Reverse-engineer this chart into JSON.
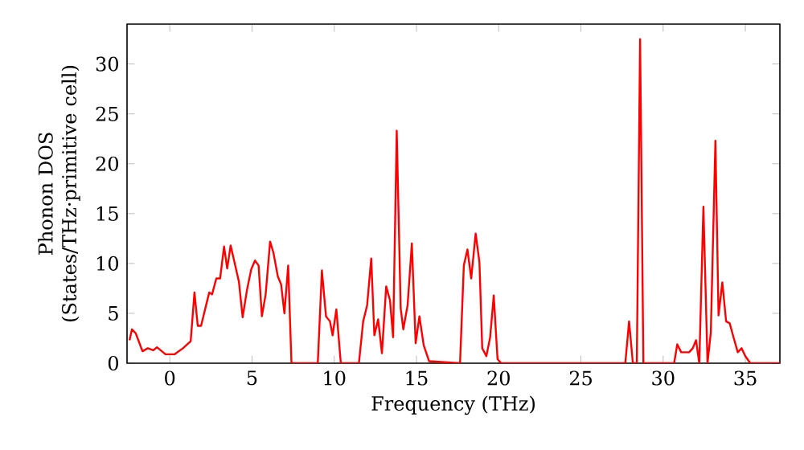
{
  "chart_data": {
    "type": "line",
    "xlabel": "Frequency (THz)",
    "ylabel": "Phonon DOS (States/THz·primitive cell)",
    "series": [
      {
        "color": "#ff0000",
        "x": [
          -2.45,
          -2.3,
          -2.07,
          -1.66,
          -1.34,
          -1.0,
          -0.78,
          -0.26,
          0.3,
          0.8,
          1.27,
          1.5,
          1.7,
          1.9,
          2.4,
          2.57,
          2.83,
          3.06,
          3.3,
          3.49,
          3.7,
          4.2,
          4.43,
          4.7,
          4.95,
          5.18,
          5.4,
          5.6,
          5.83,
          6.1,
          6.3,
          6.57,
          6.77,
          6.97,
          7.2,
          7.4,
          9.0,
          9.25,
          9.5,
          9.74,
          9.9,
          10.13,
          10.4,
          11.5,
          11.76,
          12.0,
          12.25,
          12.44,
          12.67,
          12.9,
          13.16,
          13.39,
          13.58,
          13.8,
          14.04,
          14.2,
          14.46,
          14.72,
          14.95,
          15.18,
          15.44,
          15.77,
          17.65,
          17.88,
          18.1,
          18.33,
          18.6,
          18.83,
          19.0,
          19.25,
          19.48,
          19.7,
          19.93,
          20.16,
          27.7,
          27.93,
          28.16,
          28.4,
          28.6,
          28.8,
          30.67,
          30.86,
          31.1,
          31.58,
          31.8,
          32.0,
          32.2,
          32.45,
          32.7,
          32.9,
          33.18,
          33.37,
          33.6,
          33.83,
          34.05,
          34.28,
          34.54,
          34.77,
          35.0,
          35.3,
          37.1
        ],
        "values": [
          2.3,
          3.4,
          3.0,
          1.2,
          1.5,
          1.3,
          1.6,
          0.9,
          0.9,
          1.5,
          2.2,
          7.1,
          3.75,
          3.75,
          7.1,
          6.9,
          8.5,
          8.5,
          11.7,
          9.5,
          11.8,
          8.2,
          4.6,
          7.4,
          9.4,
          10.3,
          9.8,
          4.7,
          6.9,
          12.2,
          11.1,
          8.7,
          7.9,
          5.0,
          9.8,
          0,
          0,
          9.3,
          4.7,
          4.2,
          2.8,
          5.4,
          0,
          0,
          4.2,
          5.8,
          10.5,
          2.8,
          4.4,
          1.0,
          7.7,
          6.3,
          2.6,
          23.3,
          5.5,
          3.4,
          5.8,
          12.0,
          2.0,
          4.7,
          1.8,
          0.2,
          0,
          9.8,
          11.4,
          8.5,
          13.0,
          10.1,
          1.5,
          0.7,
          2.6,
          6.8,
          0.4,
          0,
          0,
          4.2,
          0,
          0,
          32.5,
          0,
          0,
          1.9,
          1.1,
          1.1,
          1.5,
          2.3,
          0,
          15.7,
          0,
          3.1,
          22.3,
          4.8,
          8.1,
          4.2,
          4.0,
          2.6,
          1.1,
          1.5,
          0.7,
          0,
          0
        ]
      }
    ],
    "xlim": [
      -2.6,
      37.1
    ],
    "ylim": [
      0,
      34
    ],
    "xticks": [
      0,
      5,
      10,
      15,
      20,
      25,
      30,
      35
    ],
    "yticks": [
      0,
      5,
      10,
      15,
      20,
      25,
      30
    ]
  }
}
